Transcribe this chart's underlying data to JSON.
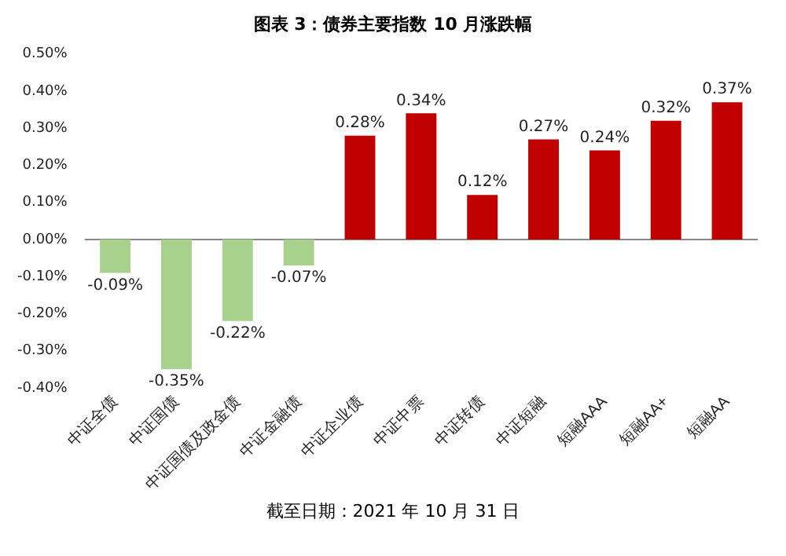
{
  "chart_data": {
    "type": "bar",
    "title": "图表 3：债券主要指数 10 月涨跌幅",
    "categories": [
      "中证全债",
      "中证国债",
      "中证国债及政金债",
      "中证金融债",
      "中证企业债",
      "中证中票",
      "中证转债",
      "中证短融",
      "短融AAA",
      "短融AA+",
      "短融AA"
    ],
    "values": [
      -0.09,
      -0.35,
      -0.22,
      -0.07,
      0.28,
      0.34,
      0.12,
      0.27,
      0.24,
      0.32,
      0.37
    ],
    "colors": [
      "#a9d18e",
      "#a9d18e",
      "#a9d18e",
      "#a9d18e",
      "#c00000",
      "#c00000",
      "#c00000",
      "#c00000",
      "#c00000",
      "#c00000",
      "#c00000"
    ],
    "value_labels": [
      "-0.09%",
      "-0.35%",
      "-0.22%",
      "-0.07%",
      "0.28%",
      "0.34%",
      "0.12%",
      "0.27%",
      "0.24%",
      "0.32%",
      "0.37%"
    ],
    "ylim": [
      -0.4,
      0.5
    ],
    "yticks": [
      {
        "value": -0.4,
        "label": "-0.40%"
      },
      {
        "value": -0.3,
        "label": "-0.30%"
      },
      {
        "value": -0.2,
        "label": "-0.20%"
      },
      {
        "value": -0.1,
        "label": "-0.10%"
      },
      {
        "value": 0,
        "label": "0.00%"
      },
      {
        "value": 0.1,
        "label": "0.10%"
      },
      {
        "value": 0.2,
        "label": "0.20%"
      },
      {
        "value": 0.3,
        "label": "0.30%"
      },
      {
        "value": 0.4,
        "label": "0.40%"
      },
      {
        "value": 0.5,
        "label": "0.50%"
      }
    ],
    "grid": false,
    "legend": false,
    "ref_lines": [
      {
        "axis": "y",
        "value": 0,
        "color": "#888888"
      }
    ],
    "annotations": [
      "截至日期：2021 年 10 月 31 日"
    ]
  }
}
